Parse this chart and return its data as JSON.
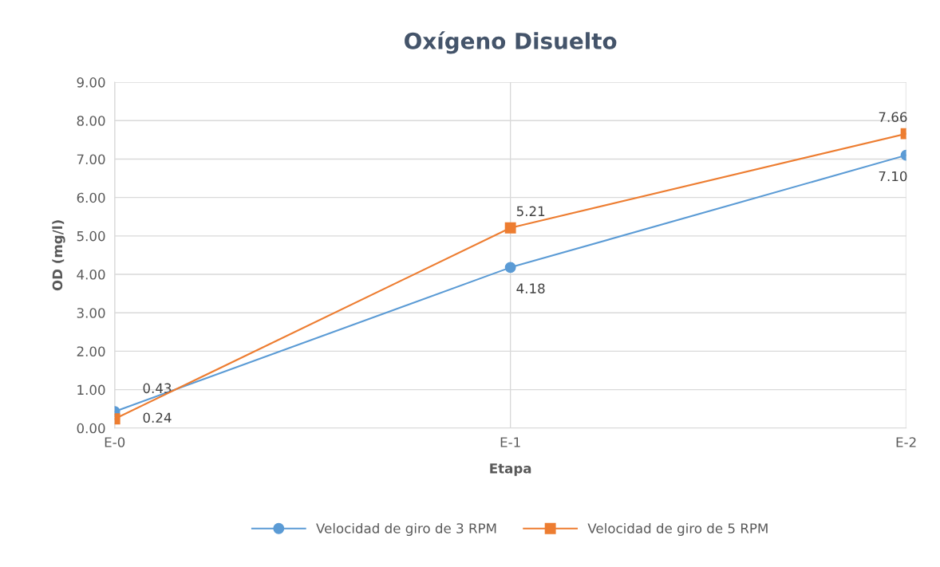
{
  "chart_data": {
    "type": "line",
    "title": "Oxígeno Disuelto",
    "xlabel": "Etapa",
    "ylabel": "OD (mg/l)",
    "categories": [
      "E-0",
      "E-1",
      "E-2"
    ],
    "series": [
      {
        "name": "Velocidad de giro de 3 RPM",
        "color": "#5b9bd5",
        "marker": "circle",
        "values": [
          0.43,
          4.18,
          7.1
        ],
        "value_labels": [
          "0.43",
          "4.18",
          "7.10"
        ]
      },
      {
        "name": "Velocidad de giro de 5 RPM",
        "color": "#ed7d31",
        "marker": "square",
        "values": [
          0.24,
          5.21,
          7.66
        ],
        "value_labels": [
          "0.24",
          "5.21",
          "7.66"
        ]
      }
    ],
    "ylim": [
      0,
      9
    ],
    "yticks": [
      {
        "value": 0,
        "label": "0.00"
      },
      {
        "value": 1,
        "label": "1.00"
      },
      {
        "value": 2,
        "label": "2.00"
      },
      {
        "value": 3,
        "label": "3.00"
      },
      {
        "value": 4,
        "label": "4.00"
      },
      {
        "value": 5,
        "label": "5.00"
      },
      {
        "value": 6,
        "label": "6.00"
      },
      {
        "value": 7,
        "label": "7.00"
      },
      {
        "value": 8,
        "label": "8.00"
      },
      {
        "value": 9,
        "label": "9.00"
      }
    ],
    "grid": true,
    "legend": "bottom",
    "line_style": "solid"
  }
}
